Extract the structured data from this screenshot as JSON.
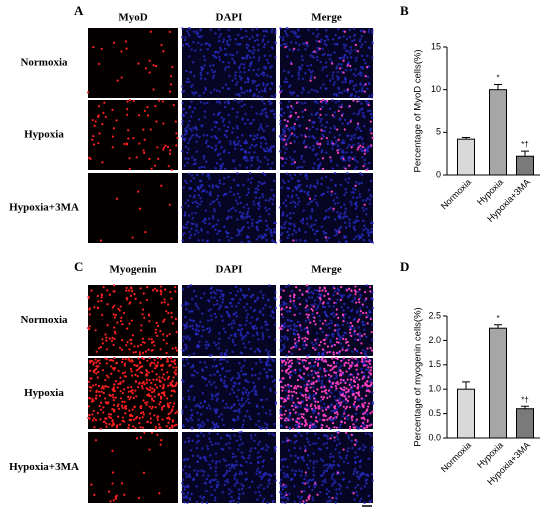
{
  "panels": [
    {
      "label": "A",
      "columns": [
        "MyoD",
        "DAPI",
        "Merge"
      ],
      "rows": [
        "Normoxia",
        "Hypoxia",
        "Hypoxia+3MA"
      ]
    },
    {
      "label": "C",
      "columns": [
        "Myogenin",
        "DAPI",
        "Merge"
      ],
      "rows": [
        "Normoxia",
        "Hypoxia",
        "Hypoxia+3MA"
      ]
    }
  ],
  "chart_data": [
    {
      "type": "bar",
      "panel_label": "B",
      "y_label": "Percentage of MyoD cells(%)",
      "categories": [
        "Normoxia",
        "Hypoxia",
        "Hypoxia+3MA"
      ],
      "values": [
        4.2,
        10,
        2.2
      ],
      "errors": [
        0.2,
        0.6,
        0.6
      ],
      "markers": [
        null,
        "*",
        "*†"
      ],
      "colors": [
        "#d9d9d9",
        "#a6a6a6",
        "#7a7a7a"
      ],
      "ylim": [
        0,
        15
      ],
      "yticks": [
        0,
        5,
        10,
        15
      ]
    },
    {
      "type": "bar",
      "panel_label": "D",
      "y_label": "Percentage of myogenin cells(%)",
      "categories": [
        "Normoxia",
        "Hypoxia",
        "Hypoxia+3MA"
      ],
      "values": [
        1.0,
        2.25,
        0.6
      ],
      "errors": [
        0.15,
        0.07,
        0.05
      ],
      "markers": [
        null,
        "*",
        "*†"
      ],
      "colors": [
        "#d9d9d9",
        "#a6a6a6",
        "#7a7a7a"
      ],
      "ylim": [
        0,
        2.5
      ],
      "yticks": [
        {
          "value": 0,
          "label": "0.0"
        },
        {
          "value": 0.5,
          "label": "0.5"
        },
        {
          "value": 1,
          "label": "1.0"
        },
        {
          "value": 1.5,
          "label": "1.5"
        },
        {
          "value": 2,
          "label": "2.0"
        },
        {
          "value": 2.5,
          "label": "2.5"
        }
      ]
    }
  ]
}
